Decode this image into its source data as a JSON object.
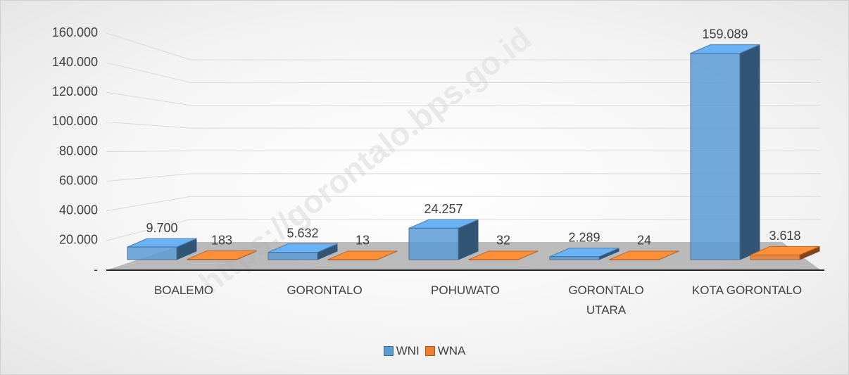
{
  "chart_data": {
    "type": "bar",
    "watermark": "https://gorontalo.bps.go.id",
    "categories": [
      "BOALEMO",
      "GORONTALO",
      "POHUWATO",
      "GORONTALO UTARA",
      "KOTA GORONTALO"
    ],
    "series": [
      {
        "name": "WNI",
        "color": "#5b9bd5",
        "values": [
          9700,
          5632,
          24257,
          2289,
          159089
        ],
        "value_labels": [
          "9.700",
          "5.632",
          "24.257",
          "2.289",
          "159.089"
        ]
      },
      {
        "name": "WNA",
        "color": "#ed7d31",
        "values": [
          183,
          13,
          32,
          24,
          3618
        ],
        "value_labels": [
          "183",
          "13",
          "32",
          "24",
          "3.618"
        ]
      }
    ],
    "ylim": [
      0,
      160000
    ],
    "yticks": [
      {
        "value": 0,
        "label": "-"
      },
      {
        "value": 20000,
        "label": "20.000"
      },
      {
        "value": 40000,
        "label": "40.000"
      },
      {
        "value": 60000,
        "label": "60.000"
      },
      {
        "value": 80000,
        "label": "80.000"
      },
      {
        "value": 100000,
        "label": "100.000"
      },
      {
        "value": 120000,
        "label": "120.000"
      },
      {
        "value": 140000,
        "label": "140.000"
      },
      {
        "value": 160000,
        "label": "160.000"
      }
    ],
    "grid": true,
    "legend": "bottom"
  }
}
